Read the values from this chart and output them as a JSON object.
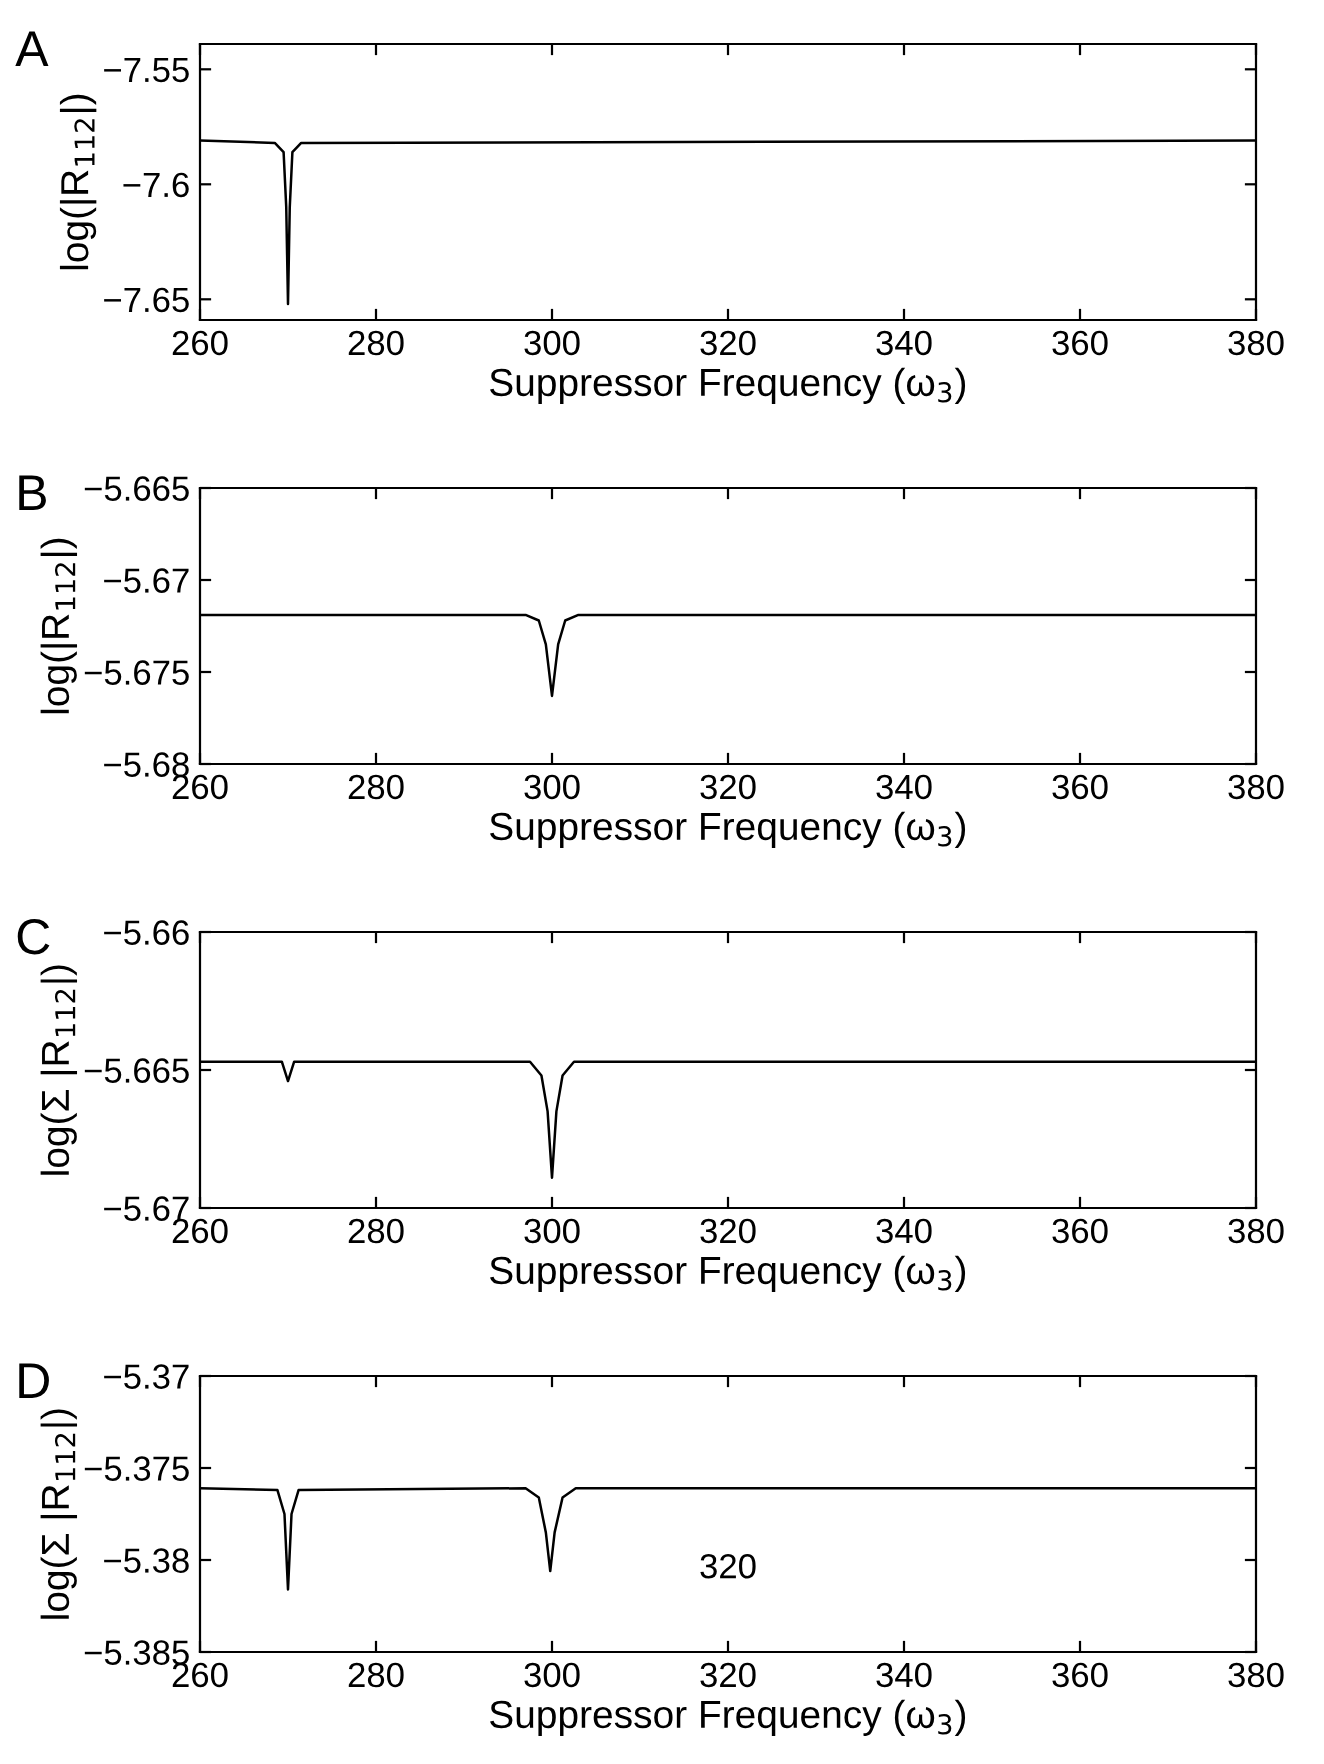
{
  "chart_data": [
    {
      "type": "line",
      "title": "A",
      "xlabel": "Suppressor Frequency (ω$_{3}$)",
      "ylabel": "log(|R$_{112}$|)",
      "xlim": [
        260,
        380
      ],
      "xticks": [
        260,
        280,
        300,
        320,
        340,
        360,
        380
      ],
      "ylim": [
        -7.659,
        -7.539
      ],
      "yticks": [
        {
          "value": -7.55,
          "label": "−7.55"
        },
        {
          "value": -7.6,
          "label": "−7.6"
        },
        {
          "value": -7.65,
          "label": "−7.65"
        }
      ],
      "grid": false,
      "legend": false,
      "series": [
        {
          "color": "#000000",
          "x": [
            260,
            268.5,
            269.5,
            269.8,
            270,
            270.2,
            270.5,
            271.5,
            380
          ],
          "values": [
            -7.581,
            -7.582,
            -7.586,
            -7.61,
            -7.652,
            -7.61,
            -7.586,
            -7.582,
            -7.581
          ]
        }
      ]
    },
    {
      "type": "line",
      "title": "B",
      "xlabel": "Suppressor Frequency (ω$_{3}$)",
      "ylabel": "log(|R$_{112}$|)",
      "xlim": [
        260,
        380
      ],
      "xticks": [
        260,
        280,
        300,
        320,
        340,
        360,
        380
      ],
      "ylim": [
        -5.68,
        -5.665
      ],
      "yticks": [
        {
          "value": -5.665,
          "label": "−5.665"
        },
        {
          "value": -5.67,
          "label": "−5.67"
        },
        {
          "value": -5.675,
          "label": "−5.675"
        },
        {
          "value": -5.68,
          "label": "−5.68"
        }
      ],
      "grid": false,
      "legend": false,
      "series": [
        {
          "color": "#000000",
          "x": [
            260,
            297,
            298.5,
            299.3,
            300,
            300.7,
            301.5,
            303,
            380
          ],
          "values": [
            -5.6719,
            -5.6719,
            -5.6722,
            -5.6735,
            -5.6763,
            -5.6735,
            -5.6722,
            -5.6719,
            -5.6719
          ]
        }
      ]
    },
    {
      "type": "line",
      "title": "C",
      "xlabel": "Suppressor Frequency (ω$_{3}$)",
      "ylabel": "log(Σ |R$_{112}$|)",
      "xlim": [
        260,
        380
      ],
      "xticks": [
        260,
        280,
        300,
        320,
        340,
        360,
        380
      ],
      "ylim": [
        -5.67,
        -5.66
      ],
      "yticks": [
        {
          "value": -5.66,
          "label": "−5.66"
        },
        {
          "value": -5.665,
          "label": "−5.665"
        },
        {
          "value": -5.67,
          "label": "−5.67"
        }
      ],
      "grid": false,
      "legend": false,
      "series": [
        {
          "color": "#000000",
          "x": [
            260,
            269.3,
            270,
            270.7,
            297.5,
            298.8,
            299.5,
            300,
            300.5,
            301.2,
            302.5,
            380
          ],
          "values": [
            -5.6647,
            -5.6647,
            -5.6654,
            -5.6647,
            -5.6647,
            -5.6652,
            -5.6665,
            -5.6689,
            -5.6665,
            -5.6652,
            -5.6647,
            -5.6647
          ]
        }
      ]
    },
    {
      "type": "line",
      "title": "D",
      "xlabel": "Suppressor Frequency (ω$_{3}$)",
      "ylabel": "log(Σ |R$_{112}$|)",
      "xlim": [
        260,
        380
      ],
      "xticks": [
        260,
        280,
        300,
        320,
        340,
        360,
        380
      ],
      "ylim": [
        -5.385,
        -5.37
      ],
      "yticks": [
        {
          "value": -5.37,
          "label": "−5.37"
        },
        {
          "value": -5.375,
          "label": "−5.375"
        },
        {
          "value": -5.38,
          "label": "−5.38"
        },
        {
          "value": -5.385,
          "label": "−5.385"
        }
      ],
      "grid": false,
      "legend": false,
      "annotations": [
        "320"
      ],
      "series": [
        {
          "color": "#000000",
          "x": [
            260,
            268.8,
            269.6,
            270,
            270.4,
            271.2,
            297,
            298.5,
            299.3,
            299.8,
            300.3,
            301.2,
            302.7,
            380
          ],
          "values": [
            -5.3761,
            -5.3762,
            -5.3775,
            -5.3816,
            -5.3775,
            -5.3762,
            -5.3761,
            -5.3766,
            -5.3785,
            -5.3806,
            -5.3785,
            -5.3766,
            -5.3761,
            -5.3761
          ]
        }
      ]
    }
  ]
}
